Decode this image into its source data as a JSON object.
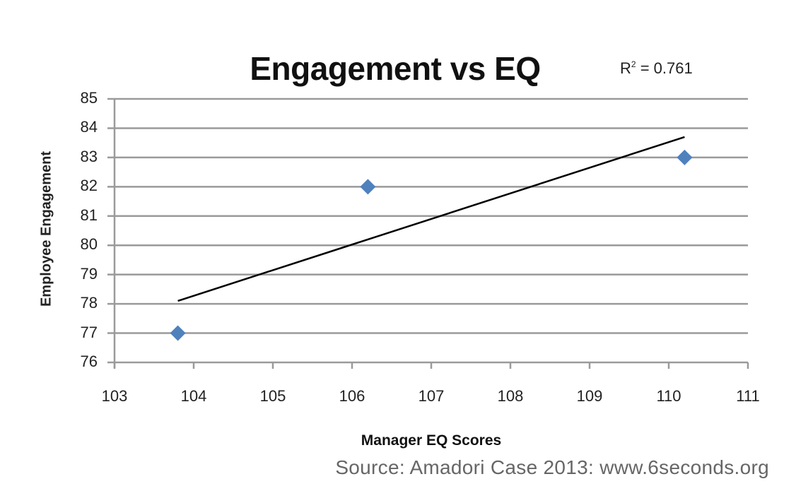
{
  "chart_data": {
    "type": "scatter",
    "title": "Engagement vs EQ",
    "xlabel": "Manager EQ Scores",
    "ylabel": "Employee Engagement",
    "xlim": [
      103,
      111
    ],
    "ylim": [
      76,
      85
    ],
    "x_ticks": [
      "103",
      "104",
      "105",
      "106",
      "107",
      "108",
      "109",
      "110",
      "111"
    ],
    "y_ticks": [
      "85",
      "84",
      "83",
      "82",
      "81",
      "80",
      "79",
      "78",
      "77",
      "76"
    ],
    "grid": "horizontal",
    "series": [
      {
        "name": "Employee Engagement",
        "marker": "diamond",
        "color": "#4f81bd",
        "points": [
          {
            "x": 103.8,
            "y": 77
          },
          {
            "x": 106.2,
            "y": 82
          },
          {
            "x": 110.2,
            "y": 83
          }
        ]
      }
    ],
    "trendline": {
      "type": "linear",
      "color": "#000000",
      "start": {
        "x": 103.8,
        "y": 78.1
      },
      "end": {
        "x": 110.2,
        "y": 83.7
      },
      "r_squared_label": "R² = 0.761"
    },
    "annotations": [
      "R² = 0.761"
    ],
    "source": "Source: Amadori Case 2013: www.6seconds.org"
  },
  "header": {
    "title": "Engagement vs EQ",
    "r2_prefix": "R",
    "r2_sup": "2",
    "r2_value": " = 0.761"
  },
  "axes": {
    "xlabel": "Manager EQ Scores",
    "ylabel": "Employee Engagement"
  },
  "footer": {
    "source": "Source: Amadori Case 2013: www.6seconds.org"
  }
}
